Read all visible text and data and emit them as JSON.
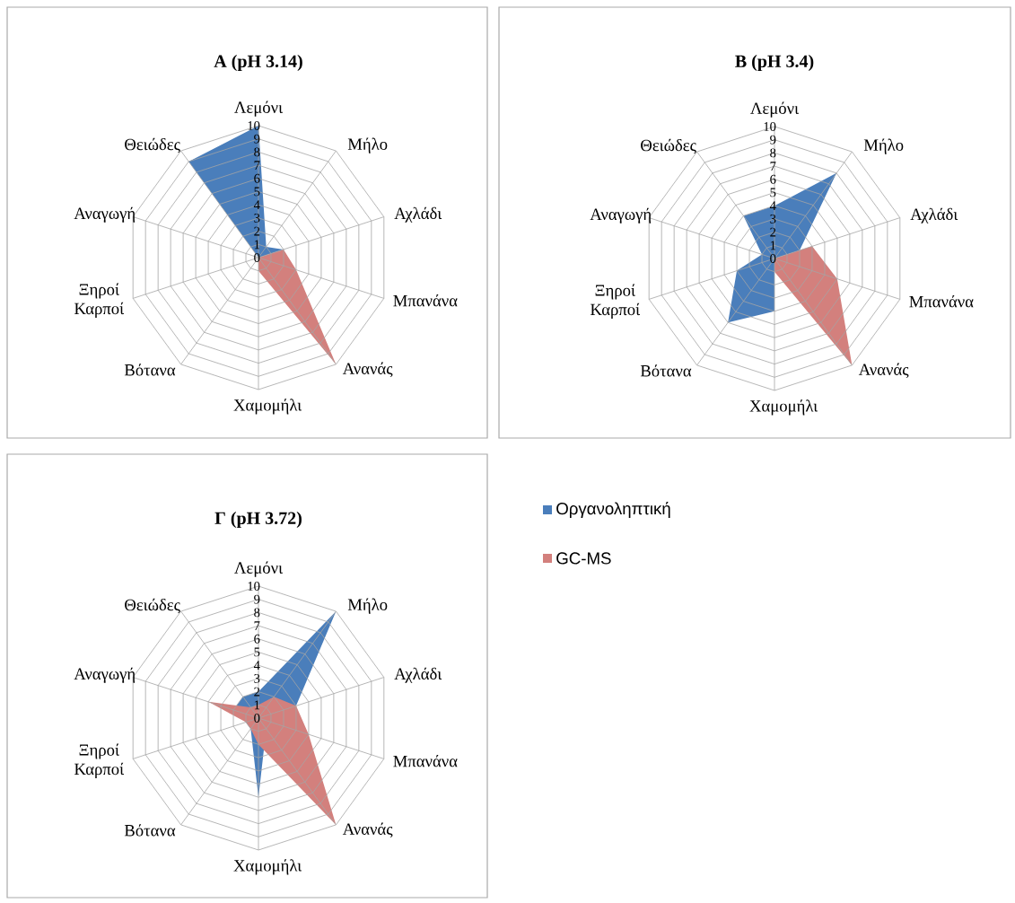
{
  "chart_data": [
    {
      "type": "radar",
      "title": "A (pH 3.14)",
      "categories": [
        "Λεμόνι",
        "Μήλο",
        "Αχλάδι",
        "Μπανάνα",
        "Ανανάς",
        "Χαμομήλι",
        "Βότανα",
        "Ξηροί Καρποί",
        "Αναγωγή",
        "Θειώδες"
      ],
      "ylim": [
        0,
        10
      ],
      "yticks": [
        0,
        1,
        2,
        3,
        4,
        5,
        6,
        7,
        8,
        9,
        10
      ],
      "grid": true,
      "series": [
        {
          "color": "#4a7ebb",
          "values": [
            10,
            1,
            2,
            0,
            0,
            0,
            0,
            0,
            0,
            9
          ]
        },
        {
          "color": "#d3807d",
          "values": [
            0,
            0,
            2,
            3,
            10,
            1,
            0,
            0,
            2,
            0
          ]
        }
      ]
    },
    {
      "type": "radar",
      "title": "B (pH 3.4)",
      "categories": [
        "Λεμόνι",
        "Μήλο",
        "Αχλάδι",
        "Μπανάνα",
        "Ανανάς",
        "Χαμομήλι",
        "Βότανα",
        "Ξηροί Καρποί",
        "Αναγωγή",
        "Θειώδες"
      ],
      "ylim": [
        0,
        10
      ],
      "yticks": [
        0,
        1,
        2,
        3,
        4,
        5,
        6,
        7,
        8,
        9,
        10
      ],
      "grid": true,
      "series": [
        {
          "color": "#4a7ebb",
          "values": [
            4,
            8,
            2,
            0,
            0,
            4,
            6,
            3,
            1,
            4
          ]
        },
        {
          "color": "#d3807d",
          "values": [
            0,
            0,
            3,
            5,
            10,
            1,
            0,
            0,
            1,
            0
          ]
        }
      ]
    },
    {
      "type": "radar",
      "title": "Γ (pH 3.72)",
      "categories": [
        "Λεμόνι",
        "Μήλο",
        "Αχλάδι",
        "Μπανάνα",
        "Ανανάς",
        "Χαμομήλι",
        "Βότανα",
        "Ξηροί Καρποί",
        "Αναγωγή",
        "Θειώδες"
      ],
      "ylim": [
        0,
        10
      ],
      "yticks": [
        0,
        1,
        2,
        3,
        4,
        5,
        6,
        7,
        8,
        9,
        10
      ],
      "grid": true,
      "legend": "right",
      "series": [
        {
          "name": "Οργανοληπτική",
          "color": "#4a7ebb",
          "values": [
            2,
            10,
            3,
            1,
            1,
            6,
            1,
            1,
            2,
            2
          ]
        },
        {
          "name": "GC-MS",
          "color": "#d3807d",
          "values": [
            1,
            2,
            3,
            4,
            10,
            2,
            1,
            1,
            4,
            1
          ]
        }
      ]
    }
  ]
}
